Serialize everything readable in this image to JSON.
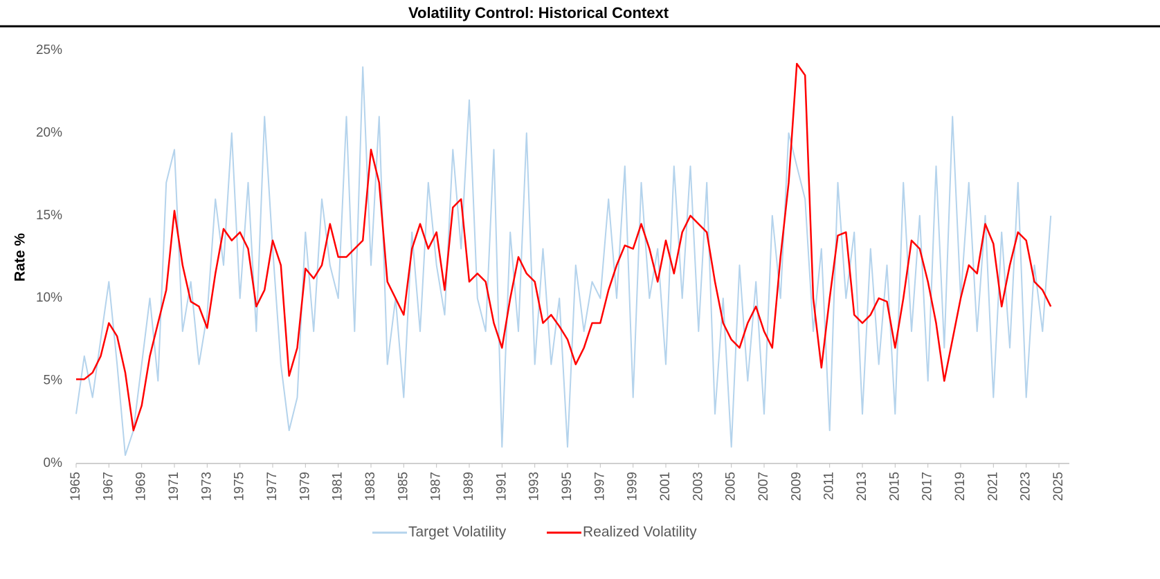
{
  "chart_data": {
    "type": "line",
    "title": "Volatility Control: Historical Context",
    "y_label": "Rate %",
    "x": [
      1965,
      1965.5,
      1966,
      1966.5,
      1967,
      1967.5,
      1968,
      1968.5,
      1969,
      1969.5,
      1970,
      1970.5,
      1971,
      1971.5,
      1972,
      1972.5,
      1973,
      1973.5,
      1974,
      1974.5,
      1975,
      1975.5,
      1976,
      1976.5,
      1977,
      1977.5,
      1978,
      1978.5,
      1979,
      1979.5,
      1980,
      1980.5,
      1981,
      1981.5,
      1982,
      1982.5,
      1983,
      1983.5,
      1984,
      1984.5,
      1985,
      1985.5,
      1986,
      1986.5,
      1987,
      1987.5,
      1988,
      1988.5,
      1989,
      1989.5,
      1990,
      1990.5,
      1991,
      1991.5,
      1992,
      1992.5,
      1993,
      1993.5,
      1994,
      1994.5,
      1995,
      1995.5,
      1996,
      1996.5,
      1997,
      1997.5,
      1998,
      1998.5,
      1999,
      1999.5,
      2000,
      2000.5,
      2001,
      2001.5,
      2002,
      2002.5,
      2003,
      2003.5,
      2004,
      2004.5,
      2005,
      2005.5,
      2006,
      2006.5,
      2007,
      2007.5,
      2008,
      2008.5,
      2009,
      2009.5,
      2010,
      2010.5,
      2011,
      2011.5,
      2012,
      2012.5,
      2013,
      2013.5,
      2014,
      2014.5,
      2015,
      2015.5,
      2016,
      2016.5,
      2017,
      2017.5,
      2018,
      2018.5,
      2019,
      2019.5,
      2020,
      2020.5,
      2021,
      2021.5,
      2022,
      2022.5,
      2023,
      2023.5,
      2024,
      2024.5
    ],
    "series": [
      {
        "name": "Target Volatility",
        "color": "#b4d3ec",
        "values": [
          3.0,
          6.5,
          4.0,
          7.5,
          11,
          6,
          0.5,
          2,
          6,
          10,
          5,
          17,
          19,
          8,
          11,
          6,
          9,
          16,
          12,
          20,
          10,
          17,
          8,
          21,
          13,
          6,
          2,
          4,
          14,
          8,
          16,
          12,
          10,
          21,
          8,
          24,
          12,
          21,
          6,
          10,
          4,
          14,
          8,
          17,
          12,
          9,
          19,
          13,
          22,
          10,
          8,
          19,
          1,
          14,
          8,
          20,
          6,
          13,
          6,
          10,
          1,
          12,
          8,
          11,
          10,
          16,
          10,
          18,
          4,
          17,
          10,
          13,
          6,
          18,
          10,
          18,
          8,
          17,
          3,
          10,
          1,
          12,
          5,
          11,
          3,
          15,
          10,
          20,
          18,
          16,
          8,
          13,
          2,
          17,
          10,
          14,
          3,
          13,
          6,
          12,
          3,
          17,
          8,
          15,
          5,
          18,
          7,
          21,
          10,
          17,
          8,
          15,
          4,
          14,
          7,
          17,
          4,
          12,
          8,
          15
        ]
      },
      {
        "name": "Realized Volatility",
        "color": "#ff0000",
        "values": [
          5.1,
          5.1,
          5.5,
          6.5,
          8.5,
          7.7,
          5.5,
          2.0,
          3.5,
          6.5,
          8.5,
          10.5,
          15.3,
          12.0,
          9.8,
          9.5,
          8.2,
          11.5,
          14.2,
          13.5,
          14.0,
          13.0,
          9.5,
          10.5,
          13.5,
          12.0,
          5.3,
          7.0,
          11.8,
          11.2,
          12.0,
          14.5,
          12.5,
          12.5,
          13.0,
          13.5,
          19.0,
          17.0,
          11.0,
          10.0,
          9.0,
          13.0,
          14.5,
          13.0,
          14.0,
          10.5,
          15.5,
          16.0,
          11.0,
          11.5,
          11.0,
          8.5,
          7.0,
          10.0,
          12.5,
          11.5,
          11.0,
          8.5,
          9.0,
          8.3,
          7.5,
          6.0,
          7.0,
          8.5,
          8.5,
          10.5,
          12.0,
          13.2,
          13.0,
          14.5,
          13.0,
          11.0,
          13.5,
          11.5,
          14.0,
          15.0,
          14.5,
          14.0,
          11.0,
          8.5,
          7.5,
          7.0,
          8.5,
          9.5,
          8.0,
          7.0,
          12.5,
          17.0,
          24.2,
          23.5,
          10.0,
          5.8,
          10.0,
          13.8,
          14.0,
          9.0,
          8.5,
          9.0,
          10.0,
          9.8,
          7.0,
          10.0,
          13.5,
          13.0,
          11.0,
          8.5,
          5.0,
          7.5,
          10.0,
          12.0,
          11.5,
          14.5,
          13.3,
          9.5,
          12.0,
          14.0,
          13.5,
          11.0,
          10.5,
          9.5
        ]
      }
    ],
    "xlim": [
      1965,
      2025
    ],
    "xticks": [
      1965,
      1967,
      1969,
      1971,
      1973,
      1975,
      1977,
      1979,
      1981,
      1983,
      1985,
      1987,
      1989,
      1991,
      1993,
      1995,
      1997,
      1999,
      2001,
      2003,
      2005,
      2007,
      2009,
      2011,
      2013,
      2015,
      2017,
      2019,
      2021,
      2023,
      2025
    ],
    "ylim": [
      0,
      25
    ],
    "yticks": [
      {
        "value": 0,
        "label": "0%"
      },
      {
        "value": 5,
        "label": "5%"
      },
      {
        "value": 10,
        "label": "10%"
      },
      {
        "value": 15,
        "label": "15%"
      },
      {
        "value": 20,
        "label": "20%"
      },
      {
        "value": 25,
        "label": "25%"
      }
    ],
    "grid": false,
    "legend": "bottom"
  }
}
